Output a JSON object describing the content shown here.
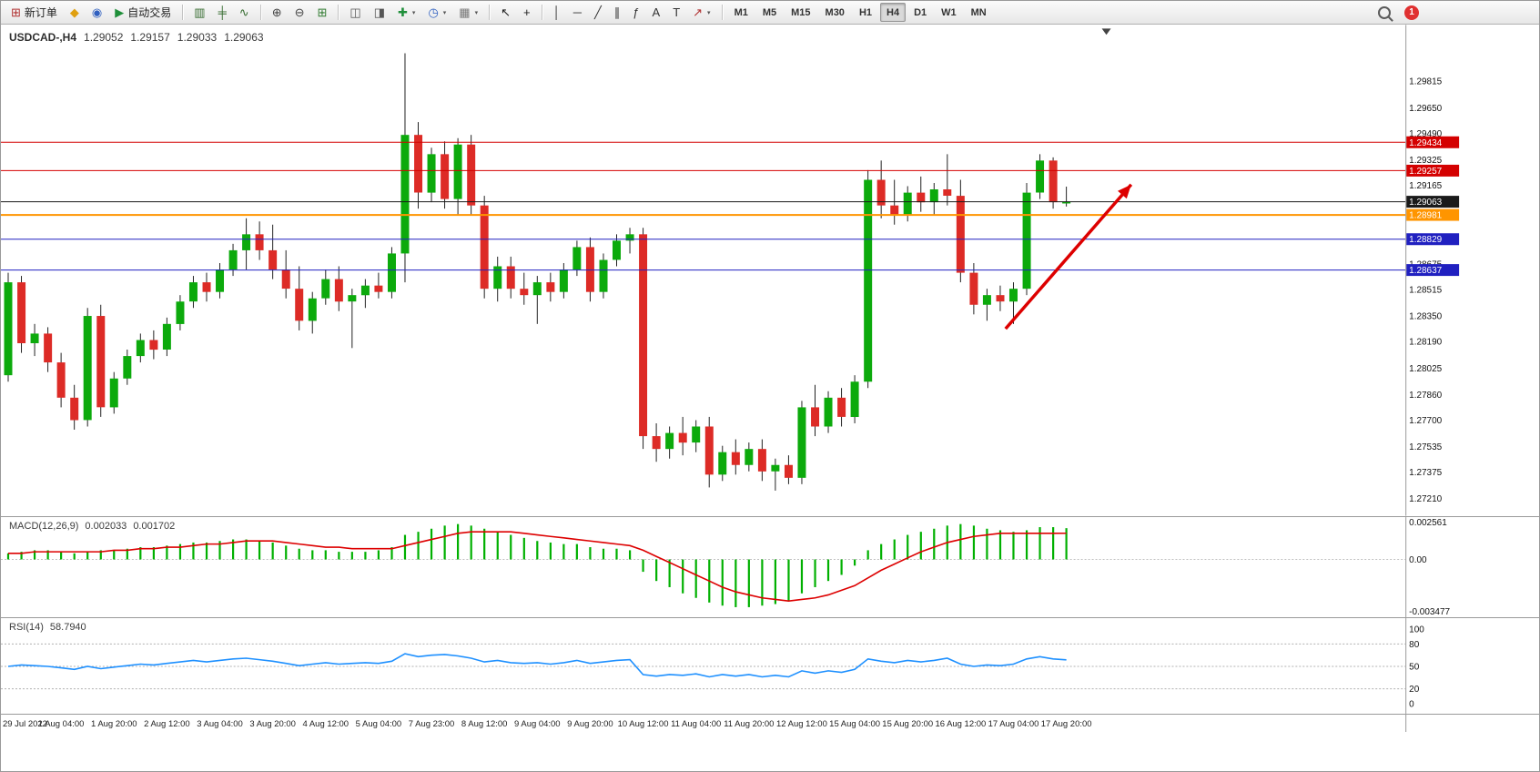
{
  "toolbar": {
    "groups": [
      {
        "items": [
          {
            "name": "new-order-button",
            "icon": "new-order-icon",
            "glyph": "⊞",
            "color": "#b03030",
            "label": "新订单"
          },
          {
            "name": "chart-wizard-button",
            "icon": "chart-wizard-icon",
            "glyph": "◆",
            "color": "#e0a010"
          },
          {
            "name": "community-button",
            "icon": "community-icon",
            "glyph": "◉",
            "color": "#3060c0"
          },
          {
            "name": "autotrading-button",
            "icon": "autotrading-icon",
            "glyph": "▶",
            "color": "#1f8f3a",
            "label": "自动交易"
          }
        ]
      },
      {
        "items": [
          {
            "name": "bar-chart-button",
            "icon": "bar-chart-icon",
            "glyph": "▥",
            "color": "#356b2f"
          },
          {
            "name": "candlestick-chart-button",
            "icon": "candlestick-chart-icon",
            "glyph": "╪",
            "color": "#356b2f"
          },
          {
            "name": "line-chart-button",
            "icon": "line-chart-icon",
            "glyph": "∿",
            "color": "#356b2f"
          }
        ]
      },
      {
        "items": [
          {
            "name": "zoom-in-button",
            "icon": "zoom-in-icon",
            "glyph": "⊕",
            "color": "#444444"
          },
          {
            "name": "zoom-out-button",
            "icon": "zoom-out-icon",
            "glyph": "⊖",
            "color": "#444444"
          },
          {
            "name": "tile-windows-button",
            "icon": "tile-windows-icon",
            "glyph": "⊞",
            "color": "#2f7a2f"
          }
        ]
      },
      {
        "items": [
          {
            "name": "auto-scroll-button",
            "icon": "auto-scroll-icon",
            "glyph": "◫",
            "color": "#555555"
          },
          {
            "name": "chart-shift-button",
            "icon": "chart-shift-icon",
            "glyph": "◨",
            "color": "#555555"
          },
          {
            "name": "indicators-button",
            "icon": "indicators-icon",
            "glyph": "✚",
            "color": "#1f8f3a",
            "dropdown": true
          },
          {
            "name": "periods-button",
            "icon": "periods-icon",
            "glyph": "◷",
            "color": "#3060c0",
            "dropdown": true
          },
          {
            "name": "templates-button",
            "icon": "templates-icon",
            "glyph": "▦",
            "color": "#777777",
            "dropdown": true
          }
        ]
      },
      {
        "items": [
          {
            "name": "cursor-button",
            "icon": "cursor-icon",
            "glyph": "↖",
            "color": "#222222"
          },
          {
            "name": "crosshair-button",
            "icon": "crosshair-icon",
            "glyph": "+",
            "color": "#222222"
          }
        ]
      },
      {
        "items": [
          {
            "name": "vertical-line-button",
            "icon": "vertical-line-icon",
            "glyph": "│",
            "color": "#333333"
          },
          {
            "name": "horizontal-line-button",
            "icon": "horizontal-line-icon",
            "glyph": "─",
            "color": "#333333"
          },
          {
            "name": "trendline-button",
            "icon": "trendline-icon",
            "glyph": "╱",
            "color": "#333333"
          },
          {
            "name": "channel-button",
            "icon": "channel-icon",
            "glyph": "∥",
            "color": "#333333"
          },
          {
            "name": "fibonacci-button",
            "icon": "fibonacci-icon",
            "glyph": "ƒ",
            "color": "#333333"
          },
          {
            "name": "text-button",
            "icon": "text-icon",
            "glyph": "A",
            "color": "#333333"
          },
          {
            "name": "text-label-button",
            "icon": "text-label-icon",
            "glyph": "T",
            "color": "#333333"
          },
          {
            "name": "arrows-button",
            "icon": "arrows-icon",
            "glyph": "↗",
            "color": "#b03030",
            "dropdown": true
          }
        ]
      }
    ],
    "timeframes": [
      {
        "name": "timeframe-m1",
        "label": "M1"
      },
      {
        "name": "timeframe-m5",
        "label": "M5"
      },
      {
        "name": "timeframe-m15",
        "label": "M15"
      },
      {
        "name": "timeframe-m30",
        "label": "M30"
      },
      {
        "name": "timeframe-h1",
        "label": "H1"
      },
      {
        "name": "timeframe-h4",
        "label": "H4"
      },
      {
        "name": "timeframe-d1",
        "label": "D1"
      },
      {
        "name": "timeframe-w1",
        "label": "W1"
      },
      {
        "name": "timeframe-mn",
        "label": "MN"
      }
    ],
    "active_timeframe": "H4",
    "right": {
      "notifications": {
        "count": "1"
      }
    }
  },
  "chart": {
    "title": {
      "symbol_period": "USDCAD-,H4",
      "open": "1.29052",
      "high": "1.29157",
      "low": "1.29033",
      "close": "1.29063"
    }
  },
  "indicators": {
    "macd": {
      "label": "MACD(12,26,9)",
      "value_main": "0.002033",
      "value_signal": "0.001702"
    },
    "rsi": {
      "label": "RSI(14)",
      "value": "58.7940"
    }
  },
  "chart_data": {
    "type": "candlestick",
    "symbol": "USDCAD-",
    "timeframe": "H4",
    "price_ticks": [
      "1.29815",
      "1.29650",
      "1.29490",
      "1.29325",
      "1.29165",
      "1.28675",
      "1.28515",
      "1.28350",
      "1.28190",
      "1.28025",
      "1.27860",
      "1.27700",
      "1.27535",
      "1.27375",
      "1.27210"
    ],
    "candles": [
      [
        1.2798,
        1.2862,
        1.2794,
        1.2856
      ],
      [
        1.2856,
        1.286,
        1.2812,
        1.2818
      ],
      [
        1.2818,
        1.283,
        1.281,
        1.2824
      ],
      [
        1.2824,
        1.2828,
        1.28,
        1.2806
      ],
      [
        1.2806,
        1.2812,
        1.2778,
        1.2784
      ],
      [
        1.2784,
        1.2792,
        1.2764,
        1.277
      ],
      [
        1.277,
        1.284,
        1.2766,
        1.2835
      ],
      [
        1.2835,
        1.2842,
        1.2772,
        1.2778
      ],
      [
        1.2778,
        1.28,
        1.2774,
        1.2796
      ],
      [
        1.2796,
        1.2814,
        1.2792,
        1.281
      ],
      [
        1.281,
        1.2824,
        1.2806,
        1.282
      ],
      [
        1.282,
        1.2826,
        1.2808,
        1.2814
      ],
      [
        1.2814,
        1.2834,
        1.281,
        1.283
      ],
      [
        1.283,
        1.2848,
        1.2826,
        1.2844
      ],
      [
        1.2844,
        1.286,
        1.284,
        1.2856
      ],
      [
        1.2856,
        1.2862,
        1.2844,
        1.285
      ],
      [
        1.285,
        1.2868,
        1.2846,
        1.2864
      ],
      [
        1.2864,
        1.288,
        1.286,
        1.2876
      ],
      [
        1.2876,
        1.2896,
        1.2864,
        1.2886
      ],
      [
        1.2886,
        1.2894,
        1.287,
        1.2876
      ],
      [
        1.2876,
        1.2892,
        1.2858,
        1.2864
      ],
      [
        1.2864,
        1.2876,
        1.2846,
        1.2852
      ],
      [
        1.2852,
        1.2866,
        1.2826,
        1.2832
      ],
      [
        1.2832,
        1.285,
        1.2824,
        1.2846
      ],
      [
        1.2846,
        1.2864,
        1.2842,
        1.2858
      ],
      [
        1.2858,
        1.2866,
        1.2838,
        1.2844
      ],
      [
        1.2844,
        1.2852,
        1.2815,
        1.2848
      ],
      [
        1.2848,
        1.2858,
        1.284,
        1.2854
      ],
      [
        1.2854,
        1.2862,
        1.2846,
        1.285
      ],
      [
        1.285,
        1.2878,
        1.2846,
        1.2874
      ],
      [
        1.2874,
        1.2999,
        1.2856,
        1.2948
      ],
      [
        1.2948,
        1.2956,
        1.2902,
        1.2912
      ],
      [
        1.2912,
        1.294,
        1.2906,
        1.2936
      ],
      [
        1.2936,
        1.2944,
        1.2902,
        1.2908
      ],
      [
        1.2908,
        1.2946,
        1.2898,
        1.2942
      ],
      [
        1.2942,
        1.2948,
        1.2898,
        1.2904
      ],
      [
        1.2904,
        1.291,
        1.2846,
        1.2852
      ],
      [
        1.2852,
        1.2872,
        1.2844,
        1.2866
      ],
      [
        1.2866,
        1.2872,
        1.2846,
        1.2852
      ],
      [
        1.2852,
        1.2862,
        1.2842,
        1.2848
      ],
      [
        1.2848,
        1.286,
        1.283,
        1.2856
      ],
      [
        1.2856,
        1.2862,
        1.2844,
        1.285
      ],
      [
        1.285,
        1.2868,
        1.2846,
        1.2864
      ],
      [
        1.2864,
        1.2882,
        1.286,
        1.2878
      ],
      [
        1.2878,
        1.2884,
        1.2844,
        1.285
      ],
      [
        1.285,
        1.2874,
        1.2846,
        1.287
      ],
      [
        1.287,
        1.2886,
        1.2866,
        1.2882
      ],
      [
        1.2882,
        1.289,
        1.2874,
        1.2886
      ],
      [
        1.2886,
        1.289,
        1.2752,
        1.276
      ],
      [
        1.276,
        1.2768,
        1.2744,
        1.2752
      ],
      [
        1.2752,
        1.2766,
        1.2746,
        1.2762
      ],
      [
        1.2762,
        1.2772,
        1.2748,
        1.2756
      ],
      [
        1.2756,
        1.277,
        1.275,
        1.2766
      ],
      [
        1.2766,
        1.2772,
        1.2728,
        1.2736
      ],
      [
        1.2736,
        1.2754,
        1.2732,
        1.275
      ],
      [
        1.275,
        1.2758,
        1.2736,
        1.2742
      ],
      [
        1.2742,
        1.2756,
        1.2738,
        1.2752
      ],
      [
        1.2752,
        1.2758,
        1.2732,
        1.2738
      ],
      [
        1.2738,
        1.2746,
        1.2726,
        1.2742
      ],
      [
        1.2742,
        1.2748,
        1.273,
        1.2734
      ],
      [
        1.2734,
        1.2782,
        1.273,
        1.2778
      ],
      [
        1.2778,
        1.2792,
        1.276,
        1.2766
      ],
      [
        1.2766,
        1.2788,
        1.2762,
        1.2784
      ],
      [
        1.2784,
        1.279,
        1.2766,
        1.2772
      ],
      [
        1.2772,
        1.2798,
        1.2768,
        1.2794
      ],
      [
        1.2794,
        1.2926,
        1.279,
        1.292
      ],
      [
        1.292,
        1.2932,
        1.2896,
        1.2904
      ],
      [
        1.2904,
        1.292,
        1.2892,
        1.2898
      ],
      [
        1.2898,
        1.2916,
        1.2894,
        1.2912
      ],
      [
        1.2912,
        1.2922,
        1.29,
        1.2906
      ],
      [
        1.2906,
        1.2918,
        1.2898,
        1.2914
      ],
      [
        1.2914,
        1.2936,
        1.2904,
        1.291
      ],
      [
        1.291,
        1.292,
        1.2856,
        1.2862
      ],
      [
        1.2862,
        1.2868,
        1.2836,
        1.2842
      ],
      [
        1.2842,
        1.2852,
        1.2832,
        1.2848
      ],
      [
        1.2848,
        1.2854,
        1.2838,
        1.2844
      ],
      [
        1.2844,
        1.2856,
        1.283,
        1.2852
      ],
      [
        1.2852,
        1.2918,
        1.2848,
        1.2912
      ],
      [
        1.2912,
        1.2936,
        1.2908,
        1.2932
      ],
      [
        1.2932,
        1.2934,
        1.2902,
        1.2906
      ],
      [
        1.29052,
        1.29157,
        1.29033,
        1.29063
      ]
    ],
    "time_labels": [
      "29 Jul 2022",
      "1 Aug 04:00",
      "1 Aug 20:00",
      "2 Aug 12:00",
      "3 Aug 04:00",
      "3 Aug 20:00",
      "4 Aug 12:00",
      "5 Aug 04:00",
      "7 Aug 23:00",
      "8 Aug 12:00",
      "9 Aug 04:00",
      "9 Aug 20:00",
      "10 Aug 12:00",
      "11 Aug 04:00",
      "11 Aug 20:00",
      "12 Aug 12:00",
      "15 Aug 04:00",
      "15 Aug 20:00",
      "16 Aug 12:00",
      "17 Aug 04:00",
      "17 Aug 20:00"
    ],
    "time_label_indices": [
      0,
      4,
      8,
      12,
      16,
      20,
      24,
      28,
      32,
      36,
      40,
      44,
      48,
      52,
      56,
      60,
      64,
      68,
      72,
      76,
      80
    ],
    "hlines": [
      {
        "name": "resistance-line-1",
        "price": 1.29434,
        "label": "1.29434",
        "color": "#d40000",
        "width": 1,
        "badge_bg": "#d40000",
        "badge_fg": "#ffffff"
      },
      {
        "name": "resistance-line-2",
        "price": 1.29257,
        "label": "1.29257",
        "color": "#d40000",
        "width": 1,
        "badge_bg": "#d40000",
        "badge_fg": "#ffffff"
      },
      {
        "name": "current-price-line",
        "price": 1.29063,
        "label": "1.29063",
        "color": "#1a1a1a",
        "width": 1,
        "badge_bg": "#1a1a1a",
        "badge_fg": "#ffffff"
      },
      {
        "name": "pivot-line",
        "price": 1.28981,
        "label": "1.28981",
        "color": "#ff9500",
        "width": 2,
        "badge_bg": "#ff9500",
        "badge_fg": "#ffffff"
      },
      {
        "name": "support-line-1",
        "price": 1.28829,
        "label": "1.28829",
        "color": "#2020c0",
        "width": 1,
        "badge_bg": "#2020c0",
        "badge_fg": "#ffffff"
      },
      {
        "name": "support-line-2",
        "price": 1.28637,
        "label": "1.28637",
        "color": "#2020c0",
        "width": 1,
        "badge_bg": "#2020c0",
        "badge_fg": "#ffffff"
      }
    ],
    "arrow": {
      "from_index": 75.4,
      "from_price": 1.2827,
      "to_index": 84.9,
      "to_price": 1.2917,
      "color": "#dd0000"
    },
    "macd": {
      "values": [
        0.0004,
        0.0005,
        0.0006,
        0.0006,
        0.0005,
        0.0004,
        0.0005,
        0.0006,
        0.0006,
        0.0007,
        0.0008,
        0.0008,
        0.0009,
        0.001,
        0.0011,
        0.0011,
        0.0012,
        0.0013,
        0.0013,
        0.0012,
        0.0011,
        0.0009,
        0.0007,
        0.0006,
        0.0006,
        0.0005,
        0.0005,
        0.0005,
        0.0006,
        0.0008,
        0.0016,
        0.0018,
        0.002,
        0.0022,
        0.0023,
        0.0022,
        0.002,
        0.0018,
        0.0016,
        0.0014,
        0.0012,
        0.0011,
        0.001,
        0.001,
        0.0008,
        0.0007,
        0.0007,
        0.0006,
        -0.0008,
        -0.0014,
        -0.0018,
        -0.0022,
        -0.0025,
        -0.0028,
        -0.003,
        -0.0031,
        -0.0031,
        -0.003,
        -0.0029,
        -0.0027,
        -0.0022,
        -0.0018,
        -0.0014,
        -0.001,
        -0.0004,
        0.0006,
        0.001,
        0.0013,
        0.0016,
        0.0018,
        0.002,
        0.0022,
        0.0023,
        0.0022,
        0.002,
        0.0019,
        0.0018,
        0.0019,
        0.0021,
        0.0021,
        0.002033
      ],
      "signal": [
        0.0004,
        0.0004,
        0.0005,
        0.0005,
        0.0005,
        0.0005,
        0.0005,
        0.0005,
        0.0006,
        0.0006,
        0.0007,
        0.0007,
        0.0008,
        0.0008,
        0.0009,
        0.001,
        0.001,
        0.0011,
        0.0012,
        0.0012,
        0.0012,
        0.0011,
        0.001,
        0.0009,
        0.0008,
        0.0008,
        0.0007,
        0.0007,
        0.0007,
        0.0007,
        0.0009,
        0.0011,
        0.0013,
        0.0015,
        0.0017,
        0.0018,
        0.0018,
        0.0018,
        0.0018,
        0.0017,
        0.0016,
        0.0015,
        0.0014,
        0.0013,
        0.0012,
        0.0011,
        0.001,
        0.0009,
        0.0006,
        0.0002,
        -0.0002,
        -0.0006,
        -0.001,
        -0.0014,
        -0.0018,
        -0.0021,
        -0.0023,
        -0.0025,
        -0.0026,
        -0.0027,
        -0.0026,
        -0.0025,
        -0.0023,
        -0.002,
        -0.0017,
        -0.0012,
        -0.0007,
        -0.0003,
        0.0001,
        0.0005,
        0.0008,
        0.0011,
        0.0013,
        0.0015,
        0.0016,
        0.0017,
        0.0017,
        0.0017,
        0.0017,
        0.0017,
        0.001702
      ],
      "axis_labels": [
        {
          "text": "0.002561",
          "value": 0.002561
        },
        {
          "text": "0.00",
          "value": 0
        },
        {
          "text": "-0.003477",
          "value": -0.003477
        }
      ],
      "range": {
        "max": 0.00275,
        "min": -0.00375
      }
    },
    "rsi": {
      "values": [
        50,
        52,
        51,
        50,
        48,
        46,
        50,
        47,
        49,
        51,
        53,
        52,
        54,
        56,
        58,
        56,
        58,
        60,
        61,
        59,
        57,
        54,
        51,
        53,
        55,
        53,
        54,
        55,
        54,
        57,
        67,
        63,
        65,
        66,
        64,
        61,
        56,
        58,
        55,
        54,
        55,
        53,
        55,
        58,
        54,
        56,
        58,
        59,
        39,
        37,
        39,
        38,
        40,
        36,
        39,
        37,
        39,
        36,
        38,
        36,
        44,
        41,
        44,
        42,
        46,
        60,
        57,
        55,
        58,
        56,
        58,
        61,
        53,
        50,
        52,
        51,
        53,
        60,
        63,
        60,
        58.79
      ],
      "levels": [
        80,
        50,
        20
      ],
      "axis_labels": [
        {
          "text": "100",
          "value": 100
        },
        {
          "text": "80",
          "value": 80
        },
        {
          "text": "50",
          "value": 50
        },
        {
          "text": "20",
          "value": 20
        },
        {
          "text": "0",
          "value": 0
        }
      ],
      "range": {
        "max": 100,
        "min": 0
      }
    },
    "colors": {
      "bull": "#0caa0c",
      "bear": "#dd2b26",
      "wick": "#222222",
      "macd_hist": "#00b000",
      "macd_signal": "#dd0000",
      "rsi_line": "#1e90ff",
      "axis_text": "#111111"
    }
  }
}
